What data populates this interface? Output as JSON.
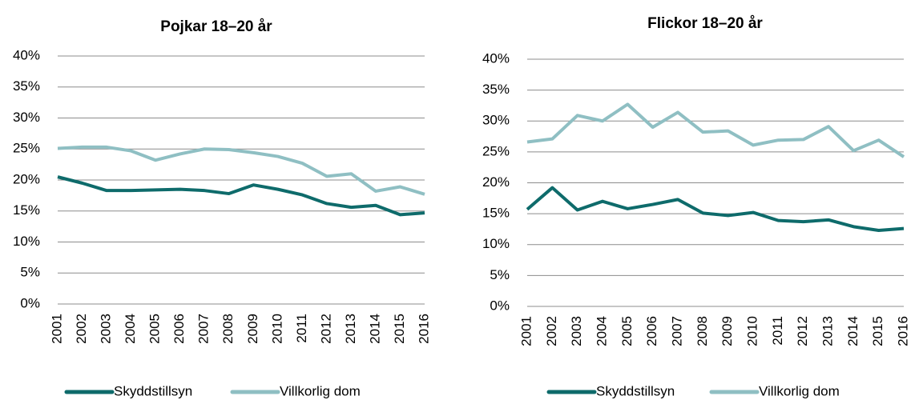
{
  "chart_data": [
    {
      "type": "line",
      "title": "Pojkar 18–20 år",
      "categories": [
        "2001",
        "2002",
        "2003",
        "2004",
        "2005",
        "2006",
        "2007",
        "2008",
        "2009",
        "2010",
        "2011",
        "2012",
        "2013",
        "2014",
        "2015",
        "2016"
      ],
      "series": [
        {
          "name": "Skyddstillsyn",
          "color": "#0e6b6b",
          "values": [
            20.5,
            19.5,
            18.3,
            18.3,
            18.4,
            18.5,
            18.3,
            17.8,
            19.2,
            18.5,
            17.6,
            16.2,
            15.6,
            15.9,
            14.4,
            14.7
          ]
        },
        {
          "name": "Villkorlig dom",
          "color": "#8fbfc3",
          "values": [
            25.1,
            25.3,
            25.3,
            24.7,
            23.2,
            24.2,
            25.0,
            24.9,
            24.4,
            23.8,
            22.7,
            20.6,
            21.0,
            18.2,
            18.9,
            17.7
          ]
        }
      ],
      "ylim": [
        0,
        40
      ],
      "yticks": [
        {
          "value": 0,
          "label": "0%"
        },
        {
          "value": 5,
          "label": "5%"
        },
        {
          "value": 10,
          "label": "10%"
        },
        {
          "value": 15,
          "label": "15%"
        },
        {
          "value": 20,
          "label": "20%"
        },
        {
          "value": 25,
          "label": "25%"
        },
        {
          "value": 30,
          "label": "30%"
        },
        {
          "value": 35,
          "label": "35%"
        },
        {
          "value": 40,
          "label": "40%"
        }
      ],
      "grid": true,
      "legend": "bottom"
    },
    {
      "type": "line",
      "title": "Flickor 18–20 år",
      "categories": [
        "2001",
        "2002",
        "2003",
        "2004",
        "2005",
        "2006",
        "2007",
        "2008",
        "2009",
        "2010",
        "2011",
        "2012",
        "2013",
        "2014",
        "2015",
        "2016"
      ],
      "series": [
        {
          "name": "Skyddstillsyn",
          "color": "#0e6b6b",
          "values": [
            15.7,
            19.2,
            15.6,
            17.0,
            15.8,
            16.5,
            17.3,
            15.1,
            14.7,
            15.2,
            13.9,
            13.7,
            14.0,
            12.9,
            12.3,
            12.6
          ]
        },
        {
          "name": "Villkorlig dom",
          "color": "#8fbfc3",
          "values": [
            26.6,
            27.1,
            30.9,
            30.0,
            32.7,
            29.0,
            31.4,
            28.2,
            28.4,
            26.1,
            26.9,
            27.0,
            29.1,
            25.2,
            26.9,
            24.2
          ]
        }
      ],
      "ylim": [
        0,
        40
      ],
      "yticks": [
        {
          "value": 0,
          "label": "0%"
        },
        {
          "value": 5,
          "label": "5%"
        },
        {
          "value": 10,
          "label": "10%"
        },
        {
          "value": 15,
          "label": "15%"
        },
        {
          "value": 20,
          "label": "20%"
        },
        {
          "value": 25,
          "label": "25%"
        },
        {
          "value": 30,
          "label": "30%"
        },
        {
          "value": 35,
          "label": "35%"
        },
        {
          "value": 40,
          "label": "40%"
        }
      ],
      "grid": true,
      "legend": "bottom"
    }
  ]
}
